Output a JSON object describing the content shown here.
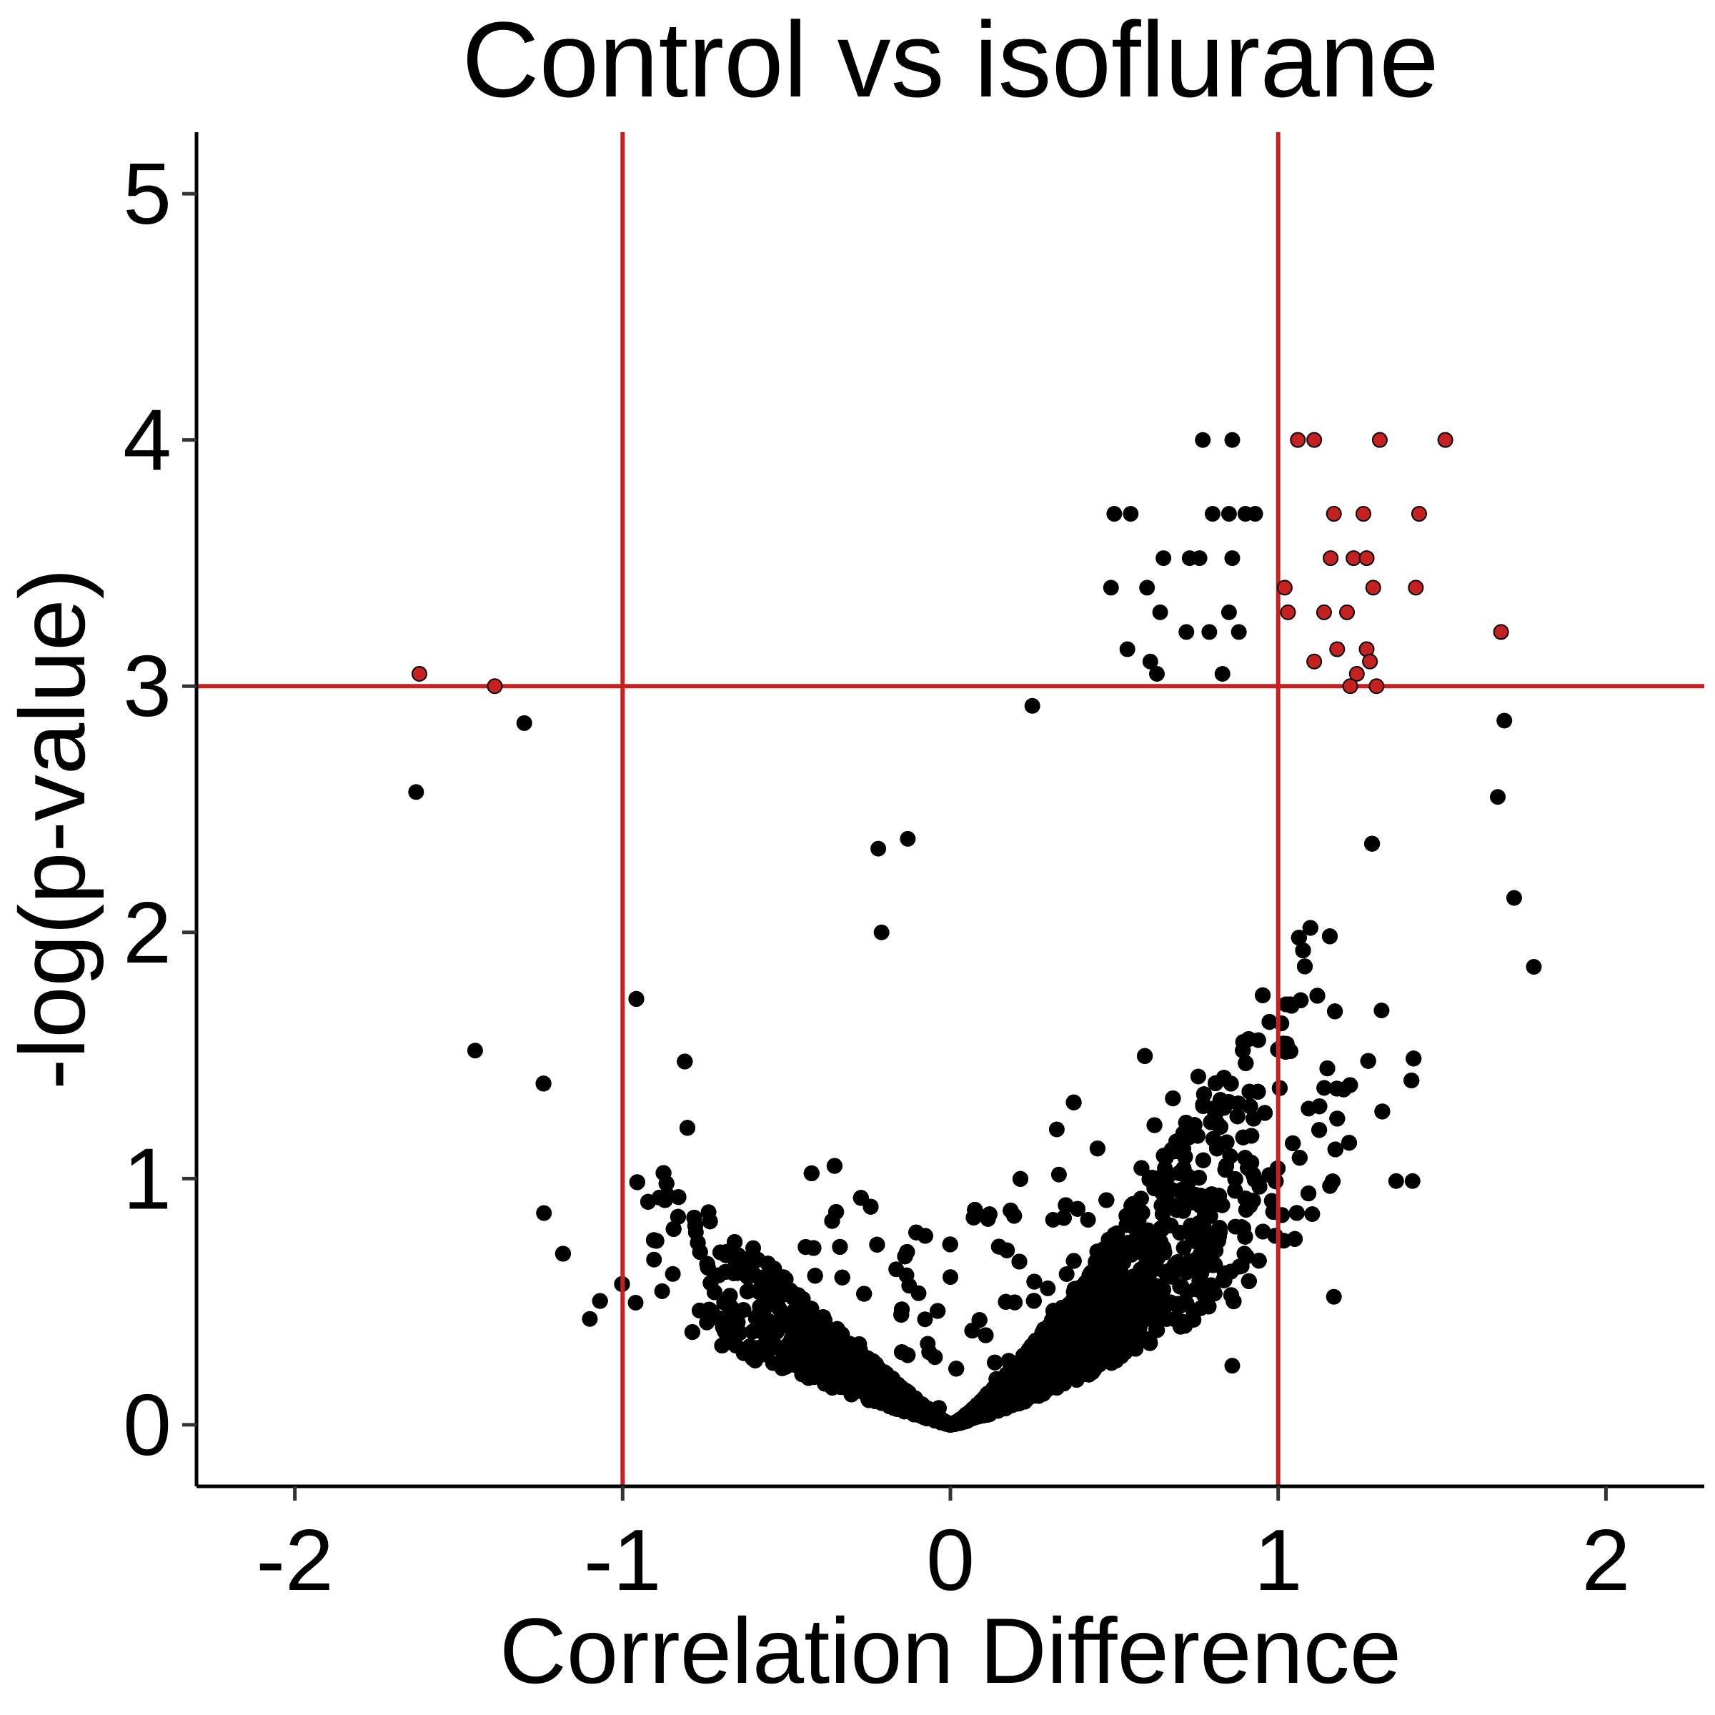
{
  "chart_data": {
    "type": "scatter",
    "title": "Control vs isoflurane",
    "xlabel": "Correlation Difference",
    "ylabel": "-log(p-value)",
    "xlim": [
      -2.3,
      2.3
    ],
    "ylim": [
      -0.25,
      5.25
    ],
    "x_ticks": [
      -2,
      -1,
      0,
      1,
      2
    ],
    "x_tick_labels": [
      "-2",
      "-1",
      "0",
      "1",
      "2"
    ],
    "y_ticks": [
      0,
      1,
      2,
      3,
      4,
      5
    ],
    "y_tick_labels": [
      "0",
      "1",
      "2",
      "3",
      "4",
      "5"
    ],
    "thresholds": {
      "vertical": [
        -1,
        1
      ],
      "horizontal": [
        3
      ],
      "color": "#c62121"
    },
    "point_colors": {
      "default": "#000000",
      "significant": "#c62121"
    },
    "significant_points": [
      {
        "x": -1.62,
        "y": 3.05
      },
      {
        "x": -1.39,
        "y": 3.0
      },
      {
        "x": 1.06,
        "y": 4.0
      },
      {
        "x": 1.11,
        "y": 4.0
      },
      {
        "x": 1.31,
        "y": 4.0
      },
      {
        "x": 1.51,
        "y": 4.0
      },
      {
        "x": 1.17,
        "y": 3.7
      },
      {
        "x": 1.26,
        "y": 3.7
      },
      {
        "x": 1.43,
        "y": 3.7
      },
      {
        "x": 1.16,
        "y": 3.52
      },
      {
        "x": 1.23,
        "y": 3.52
      },
      {
        "x": 1.27,
        "y": 3.52
      },
      {
        "x": 1.02,
        "y": 3.4
      },
      {
        "x": 1.29,
        "y": 3.4
      },
      {
        "x": 1.42,
        "y": 3.4
      },
      {
        "x": 1.03,
        "y": 3.3
      },
      {
        "x": 1.14,
        "y": 3.3
      },
      {
        "x": 1.21,
        "y": 3.3
      },
      {
        "x": 1.68,
        "y": 3.22
      },
      {
        "x": 1.18,
        "y": 3.15
      },
      {
        "x": 1.27,
        "y": 3.15
      },
      {
        "x": 1.11,
        "y": 3.1
      },
      {
        "x": 1.28,
        "y": 3.1
      },
      {
        "x": 1.24,
        "y": 3.05
      },
      {
        "x": 1.22,
        "y": 3.0
      },
      {
        "x": 1.3,
        "y": 3.0
      }
    ],
    "notable_points": [
      {
        "x": 0.77,
        "y": 4.0
      },
      {
        "x": 0.86,
        "y": 4.0
      },
      {
        "x": 0.5,
        "y": 3.7
      },
      {
        "x": 0.55,
        "y": 3.7
      },
      {
        "x": 0.8,
        "y": 3.7
      },
      {
        "x": 0.85,
        "y": 3.7
      },
      {
        "x": 0.9,
        "y": 3.7
      },
      {
        "x": 0.93,
        "y": 3.7
      },
      {
        "x": 0.65,
        "y": 3.52
      },
      {
        "x": 0.73,
        "y": 3.52
      },
      {
        "x": 0.76,
        "y": 3.52
      },
      {
        "x": 0.86,
        "y": 3.52
      },
      {
        "x": 0.49,
        "y": 3.4
      },
      {
        "x": 0.6,
        "y": 3.4
      },
      {
        "x": 0.64,
        "y": 3.3
      },
      {
        "x": 0.72,
        "y": 3.22
      },
      {
        "x": 0.79,
        "y": 3.22
      },
      {
        "x": 0.85,
        "y": 3.3
      },
      {
        "x": 0.88,
        "y": 3.22
      },
      {
        "x": 0.54,
        "y": 3.15
      },
      {
        "x": 0.63,
        "y": 3.05
      },
      {
        "x": 0.61,
        "y": 3.1
      },
      {
        "x": 0.83,
        "y": 3.05
      },
      {
        "x": -1.63,
        "y": 2.57
      },
      {
        "x": -1.45,
        "y": 1.52
      },
      {
        "x": -1.3,
        "y": 2.85
      },
      {
        "x": -1.24,
        "y": 0.86
      },
      {
        "x": -1.1,
        "y": 0.43
      },
      {
        "x": 1.78,
        "y": 1.86
      },
      {
        "x": 1.72,
        "y": 2.14
      },
      {
        "x": 1.67,
        "y": 2.55
      },
      {
        "x": 1.69,
        "y": 2.86
      },
      {
        "x": 0.25,
        "y": 2.92
      },
      {
        "x": -0.13,
        "y": 2.38
      },
      {
        "x": -0.22,
        "y": 2.34
      },
      {
        "x": -0.21,
        "y": 2.0
      },
      {
        "x": 0.0,
        "y": 0.6
      },
      {
        "x": 1.41,
        "y": 0.99
      },
      {
        "x": 1.36,
        "y": 0.99
      },
      {
        "x": 1.17,
        "y": 0.52
      },
      {
        "x": 0.86,
        "y": 0.24
      }
    ],
    "cloud_summary": {
      "total_points": 11000,
      "shape": "volcano",
      "left_arm": {
        "x_min": -1.25,
        "x_max": 0
      },
      "right_arm": {
        "x_min": 0,
        "x_max": 1.6
      }
    }
  }
}
